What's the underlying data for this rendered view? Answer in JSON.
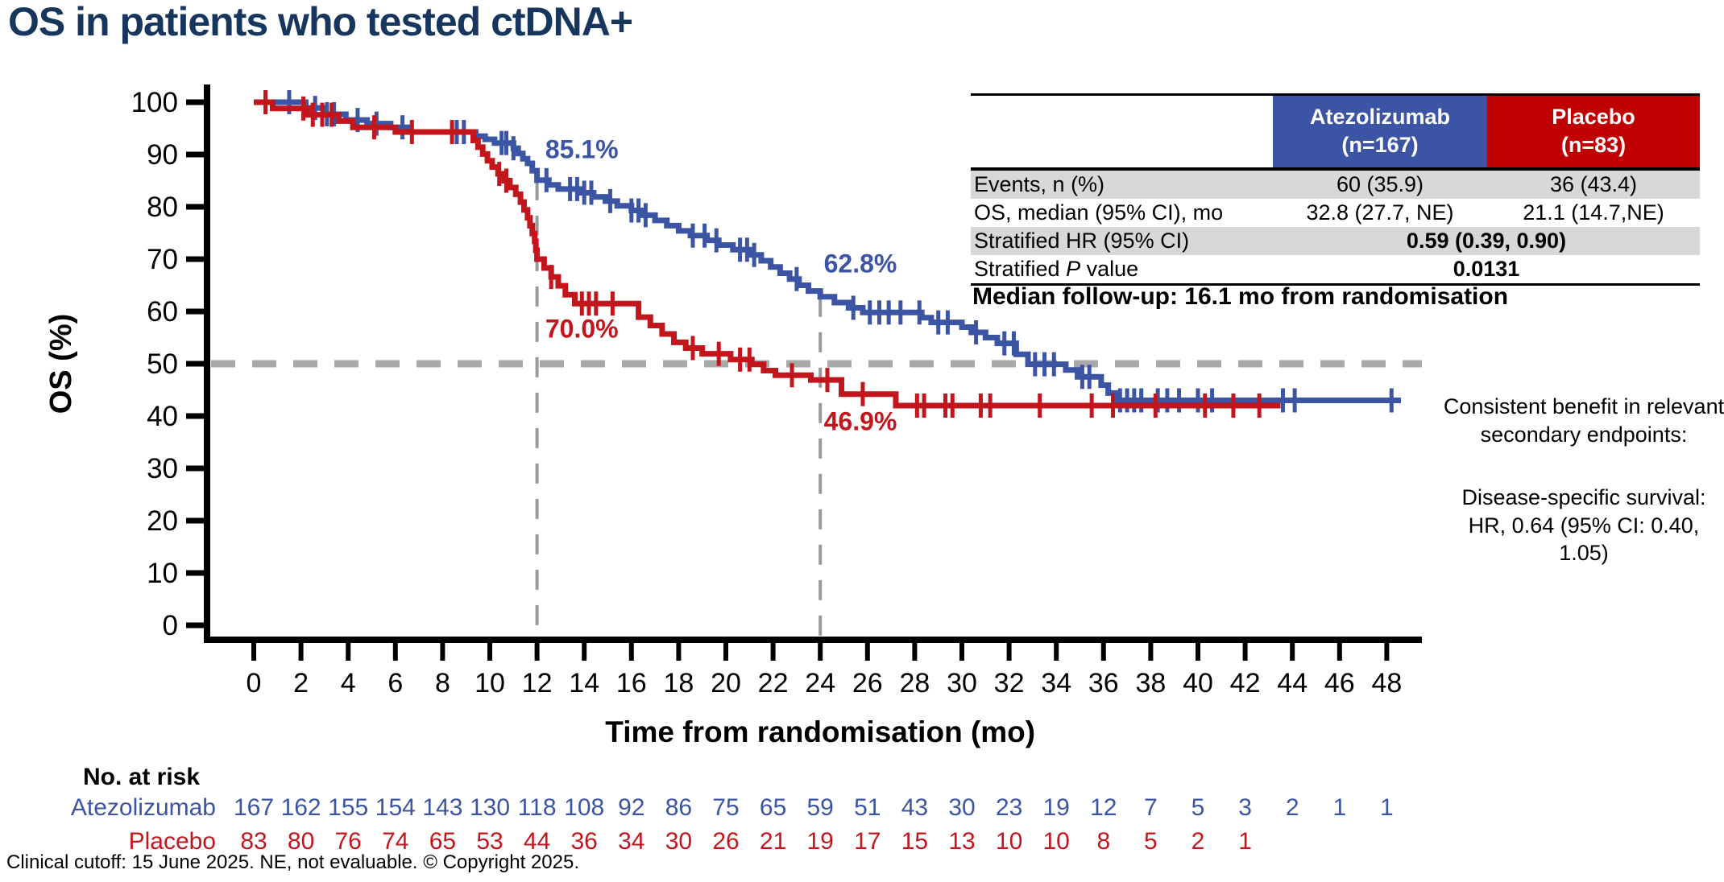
{
  "title": "OS in patients who tested ctDNA+",
  "stats_table": {
    "columns": [
      {
        "name": "Atezolizumab",
        "n": "(n=167)",
        "color": "#3b54a4"
      },
      {
        "name": "Placebo",
        "n": "(n=83)",
        "color": "#c00000"
      }
    ],
    "rows": [
      {
        "label": "Events, n (%)",
        "atezolizumab": "60 (35.9)",
        "placebo": "36 (43.4)"
      },
      {
        "label": "OS, median (95% CI), mo",
        "atezolizumab": "32.8 (27.7, NE)",
        "placebo": "21.1 (14.7,NE)"
      },
      {
        "label": "Stratified HR (95% CI)",
        "merged": "0.59 (0.39, 0.90)"
      },
      {
        "label_prefix": "Stratified ",
        "label_italic": "P",
        "label_suffix": " value",
        "merged": "0.0131"
      }
    ]
  },
  "median_followup": "Median follow-up: 16.1 mo from randomisation",
  "side_note": {
    "line1": "Consistent benefit in relevant",
    "line2": "secondary endpoints:",
    "line3": "Disease-specific survival:",
    "line4": "HR, 0.64 (95% CI: 0.40, 1.05)"
  },
  "footer": "Clinical cutoff: 15 June 2025. NE, not evaluable. © Copyright 2025.",
  "chart_data": {
    "type": "line",
    "subtype": "kaplan-meier",
    "xlabel": "Time from randomisation (mo)",
    "ylabel": "OS (%)",
    "xlim": [
      0,
      48
    ],
    "ylim": [
      0,
      100
    ],
    "x_ticks": [
      0,
      2,
      4,
      6,
      8,
      10,
      12,
      14,
      16,
      18,
      20,
      22,
      24,
      26,
      28,
      30,
      32,
      34,
      36,
      38,
      40,
      42,
      44,
      46,
      48
    ],
    "y_ticks": [
      0,
      10,
      20,
      30,
      40,
      50,
      60,
      70,
      80,
      90,
      100
    ],
    "grid": false,
    "reference_line_y": 50,
    "time_markers": [
      {
        "t": 12,
        "top_os": 85.1
      },
      {
        "t": 24,
        "top_os": 62.8
      }
    ],
    "at_risk_header": "No. at risk",
    "series": [
      {
        "name": "Atezolizumab",
        "color": "#3b54a4",
        "end": 48.6,
        "steps": [
          [
            0,
            100
          ],
          [
            2.2,
            98.9
          ],
          [
            3.0,
            97.7
          ],
          [
            3.9,
            96.6
          ],
          [
            4.8,
            95.9
          ],
          [
            5.8,
            95.2
          ],
          [
            6.6,
            94.3
          ],
          [
            9.4,
            93.5
          ],
          [
            9.8,
            92.9
          ],
          [
            10.2,
            92.2
          ],
          [
            11.0,
            91.2
          ],
          [
            11.2,
            90.2
          ],
          [
            11.4,
            89.2
          ],
          [
            11.6,
            88.3
          ],
          [
            11.8,
            86.9
          ],
          [
            12.0,
            85.1
          ],
          [
            12.5,
            84.2
          ],
          [
            12.9,
            83.4
          ],
          [
            13.9,
            82.7
          ],
          [
            14.4,
            81.9
          ],
          [
            14.9,
            81.1
          ],
          [
            15.4,
            80.2
          ],
          [
            16.0,
            79.3
          ],
          [
            16.5,
            78.4
          ],
          [
            17.0,
            77.4
          ],
          [
            17.5,
            76.4
          ],
          [
            18.0,
            75.4
          ],
          [
            18.5,
            74.5
          ],
          [
            19.2,
            73.6
          ],
          [
            19.7,
            72.7
          ],
          [
            20.3,
            71.8
          ],
          [
            21.0,
            70.8
          ],
          [
            21.5,
            69.7
          ],
          [
            21.9,
            68.5
          ],
          [
            22.3,
            67.3
          ],
          [
            22.7,
            66.2
          ],
          [
            23.1,
            65.0
          ],
          [
            23.5,
            63.9
          ],
          [
            24.0,
            62.8
          ],
          [
            24.6,
            61.7
          ],
          [
            25.2,
            60.7
          ],
          [
            25.8,
            59.8
          ],
          [
            28.3,
            58.8
          ],
          [
            28.7,
            57.9
          ],
          [
            30.0,
            57.0
          ],
          [
            30.4,
            56.0
          ],
          [
            31.0,
            55.0
          ],
          [
            31.5,
            53.9
          ],
          [
            32.3,
            51.8
          ],
          [
            32.8,
            49.9
          ],
          [
            34.4,
            48.8
          ],
          [
            34.9,
            47.5
          ],
          [
            35.9,
            45.9
          ],
          [
            36.2,
            44.4
          ],
          [
            36.5,
            43.0
          ]
        ],
        "censor_times": [
          0.5,
          1.5,
          2.6,
          3.1,
          3.4,
          4.4,
          5.2,
          6.3,
          8.6,
          8.9,
          10.5,
          10.7,
          11.0,
          12.4,
          13.4,
          13.7,
          14.0,
          14.3,
          15.1,
          16.0,
          16.3,
          16.6,
          18.6,
          19.1,
          19.6,
          20.6,
          20.9,
          21.2,
          23.0,
          25.4,
          26.1,
          26.5,
          26.9,
          27.4,
          28.2,
          29.0,
          29.4,
          30.6,
          31.8,
          32.2,
          33.1,
          33.5,
          33.9,
          35.1,
          35.4,
          36.7,
          37.0,
          37.3,
          37.6,
          38.3,
          38.7,
          39.2,
          40.0,
          40.6,
          43.6,
          44.1,
          48.2
        ],
        "landmarks": [
          {
            "label": "85.1%",
            "t": 12.35,
            "os_baseline": 89.3
          },
          {
            "label": "62.8%",
            "t": 24.15,
            "os_baseline": 67.5
          }
        ],
        "at_risk": [
          167,
          162,
          155,
          154,
          143,
          130,
          118,
          108,
          92,
          86,
          75,
          65,
          59,
          51,
          43,
          30,
          23,
          19,
          12,
          7,
          5,
          3,
          2,
          1,
          1
        ]
      },
      {
        "name": "Placebo",
        "color": "#c3161c",
        "end": 43.5,
        "steps": [
          [
            0,
            100
          ],
          [
            0.8,
            98.8
          ],
          [
            2.3,
            97.6
          ],
          [
            3.6,
            96.4
          ],
          [
            4.2,
            95.2
          ],
          [
            6.0,
            94.3
          ],
          [
            9.3,
            92.7
          ],
          [
            9.5,
            91.4
          ],
          [
            9.7,
            90.1
          ],
          [
            9.9,
            88.8
          ],
          [
            10.1,
            87.6
          ],
          [
            10.35,
            86.3
          ],
          [
            10.6,
            85.0
          ],
          [
            10.85,
            83.7
          ],
          [
            11.1,
            82.4
          ],
          [
            11.3,
            80.9
          ],
          [
            11.45,
            79.4
          ],
          [
            11.6,
            77.9
          ],
          [
            11.7,
            76.4
          ],
          [
            11.8,
            74.9
          ],
          [
            11.9,
            73.4
          ],
          [
            11.95,
            71.7
          ],
          [
            12.0,
            70.0
          ],
          [
            12.3,
            68.3
          ],
          [
            12.6,
            66.6
          ],
          [
            12.9,
            64.9
          ],
          [
            13.2,
            63.2
          ],
          [
            13.6,
            61.5
          ],
          [
            16.3,
            58.9
          ],
          [
            16.8,
            57.3
          ],
          [
            17.3,
            55.7
          ],
          [
            17.8,
            54.1
          ],
          [
            18.3,
            53.0
          ],
          [
            19.0,
            51.9
          ],
          [
            20.2,
            50.8
          ],
          [
            21.1,
            49.9
          ],
          [
            21.6,
            48.7
          ],
          [
            22.1,
            47.8
          ],
          [
            23.6,
            46.9
          ],
          [
            24.9,
            44.2
          ],
          [
            27.2,
            42.0
          ]
        ],
        "censor_times": [
          0.5,
          2.1,
          2.5,
          2.9,
          3.3,
          5.1,
          6.7,
          8.4,
          10.4,
          10.7,
          12.6,
          13.9,
          14.2,
          14.5,
          15.2,
          18.6,
          19.7,
          20.6,
          21.0,
          22.8,
          24.3,
          25.8,
          28.1,
          28.4,
          29.3,
          29.6,
          30.8,
          31.2,
          33.3,
          35.5,
          36.4,
          38.2,
          40.3,
          41.5,
          42.6
        ],
        "landmarks": [
          {
            "label": "70.0%",
            "t": 12.35,
            "os_baseline": 55.0
          },
          {
            "label": "46.9%",
            "t": 24.15,
            "os_baseline": 37.3
          }
        ],
        "at_risk": [
          83,
          80,
          76,
          74,
          65,
          53,
          44,
          36,
          34,
          30,
          26,
          21,
          19,
          17,
          15,
          13,
          10,
          10,
          8,
          5,
          2,
          1
        ]
      }
    ]
  }
}
